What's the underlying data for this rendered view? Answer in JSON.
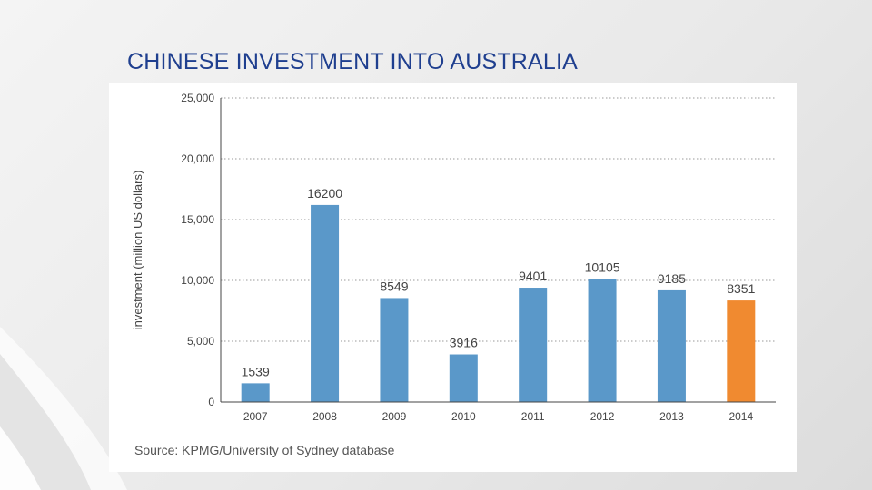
{
  "slide": {
    "title": "CHINESE INVESTMENT INTO AUSTRALIA",
    "source": "Source: KPMG/University of Sydney database"
  },
  "colors": {
    "title": "#1f3f8f",
    "bar_default": "#5a98c9",
    "bar_highlight": "#f08a30"
  },
  "chart_data": {
    "type": "bar",
    "categories": [
      "2007",
      "2008",
      "2009",
      "2010",
      "2011",
      "2012",
      "2013",
      "2014"
    ],
    "values": [
      1539,
      16200,
      8549,
      3916,
      9401,
      10105,
      9185,
      8351
    ],
    "data_labels": [
      "1539",
      "16200",
      "8549",
      "3916",
      "9401",
      "10105",
      "9185",
      "8351"
    ],
    "highlight_index": 7,
    "xlabel": "",
    "ylabel": "investment (million US dollars)",
    "ylim": [
      0,
      25000
    ],
    "yticks": [
      0,
      5000,
      10000,
      15000,
      20000,
      25000
    ],
    "ytick_labels": [
      "0",
      "5,000",
      "10,000",
      "15,000",
      "20,000",
      "25,000"
    ],
    "grid": true,
    "legend": "none"
  }
}
